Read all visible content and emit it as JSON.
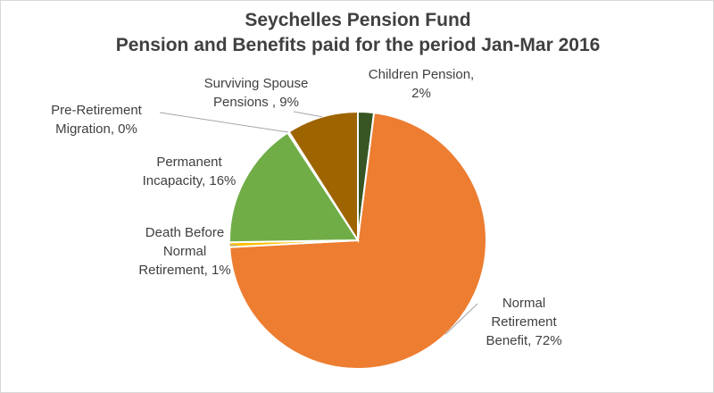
{
  "colors": {
    "Normal Retirement Benefit": "#ED7D31",
    "Death Before Normal Retirement": "#FFC000",
    "Permanent Incapacity": "#70AD47",
    "Pre-Retirement Migration": "#A5A5A5",
    "Surviving Spouse Pensions": "#9E6400",
    "Children Pension": "#375623"
  },
  "chart_data": {
    "type": "pie",
    "title": "Seychelles Pension Fund",
    "subtitle": "Pension and Benefits paid for the period Jan-Mar 2016",
    "legend": "none",
    "slices": [
      {
        "name": "Children Pension",
        "value": 2,
        "label_lines": [
          "Children Pension,",
          "2%"
        ]
      },
      {
        "name": "Normal Retirement Benefit",
        "value": 72,
        "label_lines": [
          "Normal",
          "Retirement",
          "Benefit, 72%"
        ]
      },
      {
        "name": "Death Before Normal Retirement",
        "value": 0.6,
        "label_lines": [
          "Death Before",
          "Normal",
          "Retirement, 1%"
        ]
      },
      {
        "name": "Permanent Incapacity",
        "value": 16,
        "label_lines": [
          "Permanent",
          "Incapacity, 16%"
        ]
      },
      {
        "name": "Pre-Retirement Migration",
        "value": 0.2,
        "label_lines": [
          "Pre-Retirement",
          "Migration, 0%"
        ]
      },
      {
        "name": "Surviving Spouse Pensions",
        "value": 9,
        "label_lines": [
          "Surviving Spouse",
          "Pensions , 9%"
        ]
      }
    ]
  }
}
